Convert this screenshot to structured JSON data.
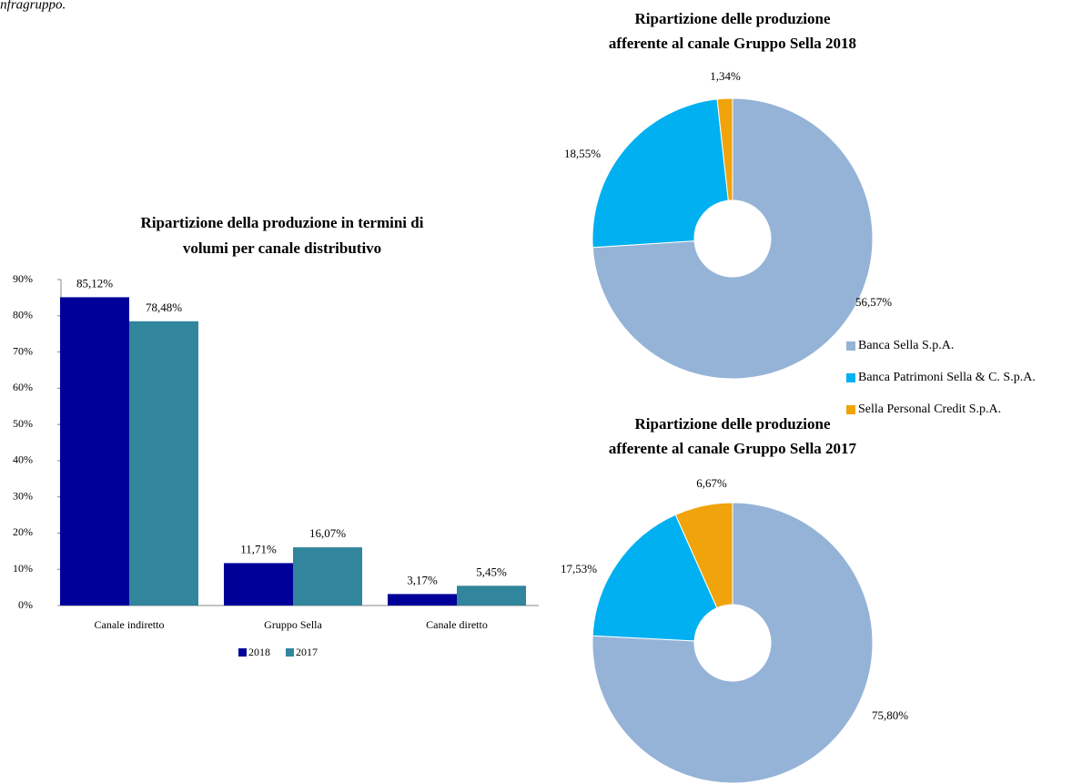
{
  "caption": "infragruppo.",
  "chart_data": [
    {
      "type": "bar",
      "title": [
        "Ripartizione della produzione in termini di",
        "volumi per canale distributivo"
      ],
      "categories": [
        "Canale indiretto",
        "Gruppo Sella",
        "Canale diretto"
      ],
      "series": [
        {
          "name": "2018",
          "color": "#000099",
          "values": [
            85.12,
            11.71,
            3.17
          ],
          "value_labels": [
            "85,12%",
            "11,71%",
            "3,17%"
          ]
        },
        {
          "name": "2017",
          "color": "#31859c",
          "values": [
            78.48,
            16.07,
            5.45
          ],
          "value_labels": [
            "78,48%",
            "16,07%",
            "5,45%"
          ]
        }
      ],
      "ylim": [
        0,
        90
      ],
      "yticks": [
        {
          "value": 0,
          "label": "0%"
        },
        {
          "value": 10,
          "label": "10%"
        },
        {
          "value": 20,
          "label": "20%"
        },
        {
          "value": 30,
          "label": "30%"
        },
        {
          "value": 40,
          "label": "40%"
        },
        {
          "value": 50,
          "label": "50%"
        },
        {
          "value": 60,
          "label": "60%"
        },
        {
          "value": 70,
          "label": "70%"
        },
        {
          "value": 80,
          "label": "80%"
        },
        {
          "value": 90,
          "label": "90%"
        }
      ],
      "legend": "bottom"
    },
    {
      "type": "donut",
      "title": [
        "Ripartizione  delle produzione",
        "afferente al canale Gruppo Sella 2018"
      ],
      "categories": [
        "Banca Sella S.p.A.",
        "Banca Patrimoni Sella & C. S.p.A.",
        "Sella Personal Credit S.p.A."
      ],
      "values": [
        56.57,
        18.55,
        1.34
      ],
      "value_labels": [
        "56,57%",
        "18,55%",
        "1,34%"
      ],
      "colors": [
        "#95b3d7",
        "#00b0f0",
        "#f0a30a"
      ],
      "legend": "right"
    },
    {
      "type": "donut",
      "title": [
        "Ripartizione  delle produzione",
        "afferente al canale Gruppo Sella 2017"
      ],
      "values": [
        75.8,
        17.53,
        6.67
      ],
      "value_labels": [
        "75,80%",
        "17,53%",
        "6,67%"
      ],
      "colors": [
        "#95b3d7",
        "#00b0f0",
        "#f0a30a"
      ]
    }
  ]
}
